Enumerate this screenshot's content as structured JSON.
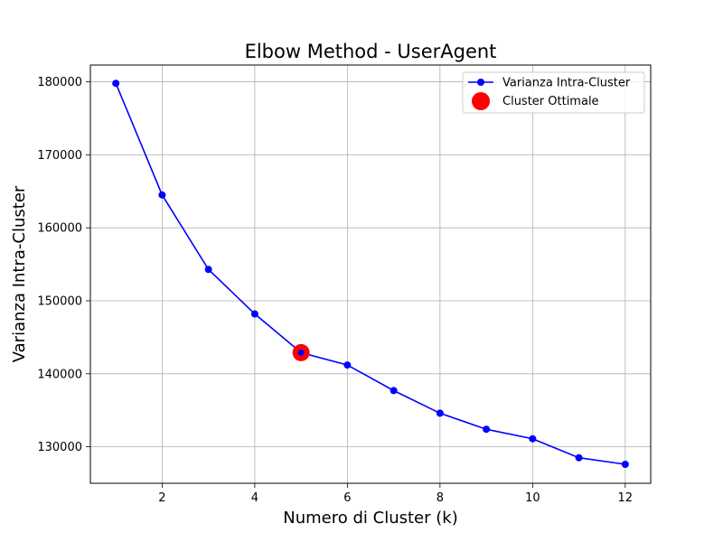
{
  "chart_data": {
    "type": "line",
    "title": "Elbow Method - UserAgent",
    "xlabel": "Numero di Cluster (k)",
    "ylabel": "Varianza Intra-Cluster",
    "xlim": [
      0.45,
      12.55
    ],
    "ylim": [
      125000,
      182300
    ],
    "xticks": [
      2,
      4,
      6,
      8,
      10,
      12
    ],
    "yticks": [
      130000,
      140000,
      150000,
      160000,
      170000,
      180000
    ],
    "grid": true,
    "legend_position": "top-right",
    "series": [
      {
        "name": "Varianza Intra-Cluster",
        "color": "#0000ff",
        "marker": "circle",
        "x": [
          1,
          2,
          3,
          4,
          5,
          6,
          7,
          8,
          9,
          10,
          11,
          12
        ],
        "y": [
          179800,
          164500,
          154300,
          148200,
          142900,
          141200,
          137700,
          134600,
          132400,
          131100,
          128500,
          127600
        ]
      },
      {
        "name": "Cluster Ottimale",
        "color": "#ff0000",
        "marker": "large-circle",
        "x": [
          5
        ],
        "y": [
          142900
        ]
      }
    ]
  }
}
